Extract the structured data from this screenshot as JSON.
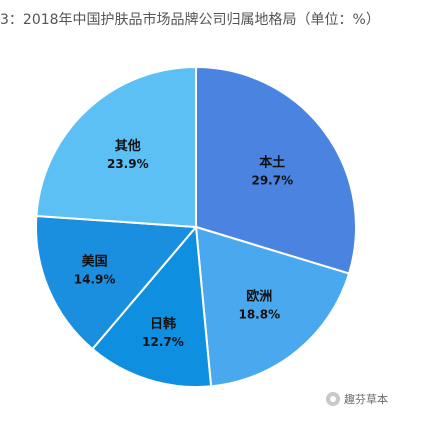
{
  "title": "3：2018年中国护肤品市场品牌公司归属地格局（单位：%）",
  "watermark": "趣芬草本",
  "chart_data": {
    "type": "pie",
    "title": "3：2018年中国护肤品市场品牌公司归属地格局（单位：%）",
    "slices": [
      {
        "name": "本土",
        "value": 29.7,
        "label": "29.7%",
        "color": "#4a84e0"
      },
      {
        "name": "欧洲",
        "value": 18.8,
        "label": "18.8%",
        "color": "#4aa9ee"
      },
      {
        "name": "日韩",
        "value": 12.7,
        "label": "12.7%",
        "color": "#0f8fe0"
      },
      {
        "name": "美国",
        "value": 14.9,
        "label": "14.9%",
        "color": "#1a8fe0"
      },
      {
        "name": "其他",
        "value": 23.9,
        "label": "23.9%",
        "color": "#5cc0f5"
      }
    ],
    "start_angle_deg": 0,
    "direction": "clockwise",
    "legend": "none"
  }
}
